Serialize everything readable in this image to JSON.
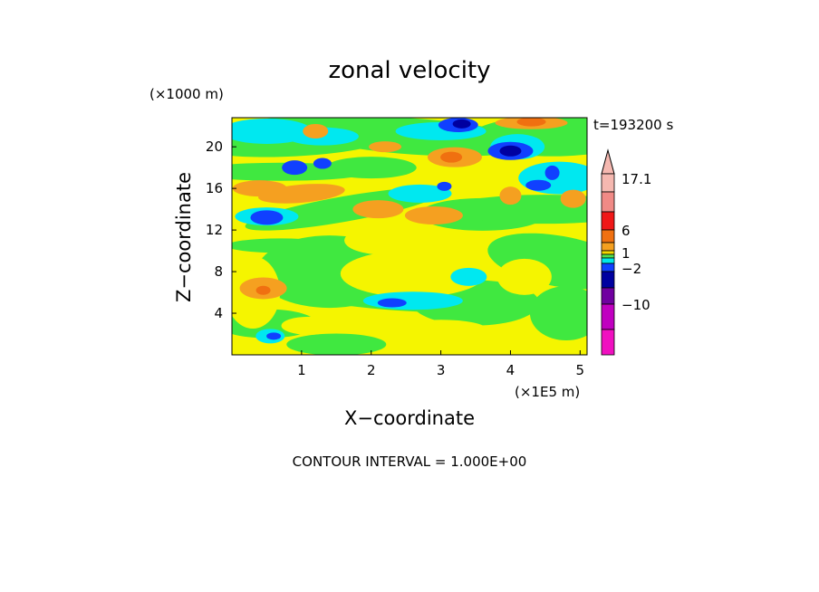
{
  "chart_data": {
    "type": "heatmap",
    "title": "zonal velocity",
    "time_label": "t=193200 s",
    "xlabel": "X−coordinate",
    "ylabel": "Z−coordinate",
    "x_unit": "(×1E5 m)",
    "y_unit": "(×1000 m)",
    "xlim": [
      0,
      5.1
    ],
    "ylim": [
      0,
      22.8
    ],
    "x_ticks": [
      1,
      2,
      3,
      4,
      5
    ],
    "y_ticks": [
      4,
      8,
      12,
      16,
      20
    ],
    "grid": false,
    "footer": "CONTOUR INTERVAL = 1.000E+00",
    "colorbar": {
      "tick_labels": [
        "17.1",
        "6",
        "1",
        "−2",
        "−10"
      ],
      "colors_top_to_bottom": [
        "#f5b8b0",
        "#f08a86",
        "#f01818",
        "#f07010",
        "#f5a020",
        "#f5d800",
        "#50e050",
        "#00e8e8",
        "#1040ff",
        "#0000a0",
        "#7000a0",
        "#c000c0",
        "#f010c0"
      ],
      "extend": "top"
    },
    "value_classes": {
      "strong_positive": "#f07010",
      "positive": "#f5a020",
      "weak_positive": "#f5f500",
      "weak_negative": "#40e840",
      "negative": "#00e8f0",
      "strong_negative": "#1040ff",
      "very_strong_negative": "#0000a0"
    }
  }
}
